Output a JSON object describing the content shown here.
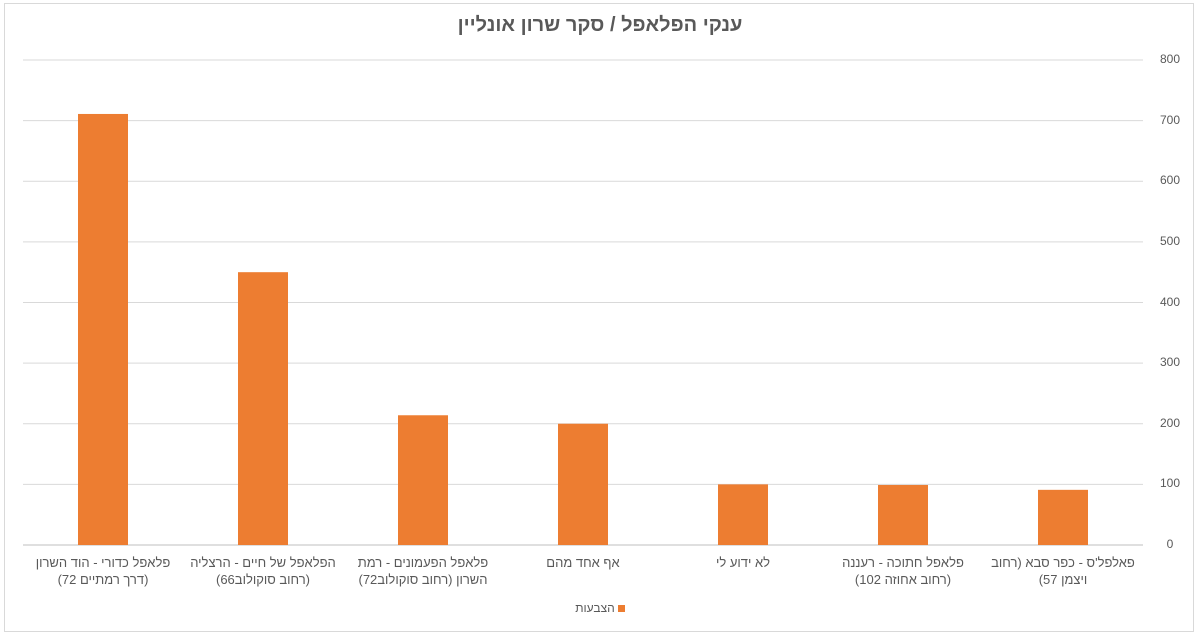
{
  "chart_data": {
    "type": "bar",
    "title": "ענקי הפלאפל / סקר שרון אונליין",
    "categories": [
      "פלאפל כדורי - הוד השרון (דרך רמתיים 72)",
      "הפלאפל של חיים - הרצליה (רחוב סוקולוב66)",
      "פלאפל הפעמונים - רמת השרון (רחוב סוקולוב72)",
      "אף אחד מהם",
      "לא ידוע לי",
      "פלאפל חתוכה - רעננה (רחוב אחוזה 102)",
      "פאלפל'ס - כפר סבא (רחוב ויצמן 57)"
    ],
    "series": [
      {
        "name": "הצבעות",
        "values": [
          711,
          450,
          214,
          200,
          100,
          99,
          91
        ],
        "color": "#ed7d31"
      }
    ],
    "ylim": [
      0,
      800
    ],
    "yticks": [
      "0",
      "100",
      "200",
      "300",
      "400",
      "500",
      "600",
      "700",
      "800"
    ],
    "y_axis_side": "right",
    "grid": true,
    "legend_position": "bottom"
  }
}
